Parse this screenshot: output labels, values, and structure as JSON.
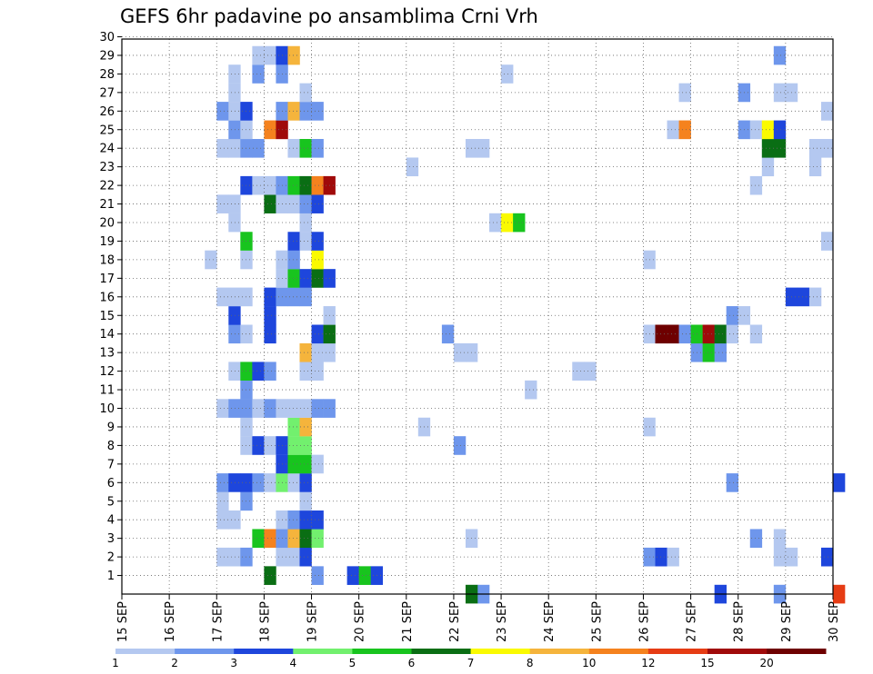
{
  "chart_data": {
    "type": "heatmap",
    "title": "GEFS 6hr padavine po ansamblima Crni Vrh",
    "x_ticks": [
      "15 SEP",
      "16 SEP",
      "17 SEP",
      "18 SEP",
      "19 SEP",
      "20 SEP",
      "21 SEP",
      "22 SEP",
      "23 SEP",
      "24 SEP",
      "25 SEP",
      "26 SEP",
      "27 SEP",
      "28 SEP",
      "29 SEP",
      "30 SEP"
    ],
    "y_ticks": [
      1,
      2,
      3,
      4,
      5,
      6,
      7,
      8,
      9,
      10,
      11,
      12,
      13,
      14,
      15,
      16,
      17,
      18,
      19,
      20,
      21,
      22,
      23,
      24,
      25,
      26,
      27,
      28,
      29,
      30
    ],
    "x_step": "6hr",
    "grid": true,
    "colorbar": {
      "labels": [
        "1",
        "2",
        "3",
        "4",
        "5",
        "6",
        "7",
        "8",
        "10",
        "12",
        "15",
        "20"
      ],
      "colors": [
        "#b4c8f0",
        "#6e96ec",
        "#1e46dc",
        "#72f06e",
        "#18c41e",
        "#0a6e14",
        "#fafa00",
        "#f5b43c",
        "#f5821e",
        "#e63c14",
        "#a00a0a",
        "#6e0000"
      ]
    },
    "cells": [
      {
        "t": 60,
        "m": 0,
        "v": 13
      },
      {
        "t": 55,
        "m": 0,
        "v": 2
      },
      {
        "t": 50,
        "m": 0,
        "v": 3
      },
      {
        "t": 30,
        "m": 0,
        "v": 2
      },
      {
        "t": 29,
        "m": 0,
        "v": 6
      },
      {
        "t": 12,
        "m": 1,
        "v": 6
      },
      {
        "t": 16,
        "m": 1,
        "v": 2
      },
      {
        "t": 19,
        "m": 1,
        "v": 3
      },
      {
        "t": 20,
        "m": 1,
        "v": 5
      },
      {
        "t": 21,
        "m": 1,
        "v": 3
      },
      {
        "t": 8,
        "m": 2,
        "v": 1
      },
      {
        "t": 9,
        "m": 2,
        "v": 1
      },
      {
        "t": 10,
        "m": 2,
        "v": 2
      },
      {
        "t": 13,
        "m": 2,
        "v": 1
      },
      {
        "t": 14,
        "m": 2,
        "v": 1
      },
      {
        "t": 15,
        "m": 2,
        "v": 3
      },
      {
        "t": 44,
        "m": 2,
        "v": 2
      },
      {
        "t": 45,
        "m": 2,
        "v": 3
      },
      {
        "t": 46,
        "m": 2,
        "v": 1
      },
      {
        "t": 55,
        "m": 2,
        "v": 1
      },
      {
        "t": 56,
        "m": 2,
        "v": 1
      },
      {
        "t": 59,
        "m": 2,
        "v": 3
      },
      {
        "t": 11,
        "m": 3,
        "v": 5
      },
      {
        "t": 12,
        "m": 3,
        "v": 10
      },
      {
        "t": 13,
        "m": 3,
        "v": 2
      },
      {
        "t": 14,
        "m": 3,
        "v": 8
      },
      {
        "t": 15,
        "m": 3,
        "v": 6
      },
      {
        "t": 16,
        "m": 3,
        "v": 4
      },
      {
        "t": 29,
        "m": 3,
        "v": 1
      },
      {
        "t": 53,
        "m": 3,
        "v": 2
      },
      {
        "t": 55,
        "m": 3,
        "v": 1
      },
      {
        "t": 8,
        "m": 4,
        "v": 1
      },
      {
        "t": 9,
        "m": 4,
        "v": 1
      },
      {
        "t": 13,
        "m": 4,
        "v": 1
      },
      {
        "t": 14,
        "m": 4,
        "v": 2
      },
      {
        "t": 15,
        "m": 4,
        "v": 3
      },
      {
        "t": 16,
        "m": 4,
        "v": 3
      },
      {
        "t": 8,
        "m": 5,
        "v": 1
      },
      {
        "t": 10,
        "m": 5,
        "v": 2
      },
      {
        "t": 15,
        "m": 5,
        "v": 1
      },
      {
        "t": 8,
        "m": 6,
        "v": 2
      },
      {
        "t": 9,
        "m": 6,
        "v": 3
      },
      {
        "t": 10,
        "m": 6,
        "v": 3
      },
      {
        "t": 11,
        "m": 6,
        "v": 2
      },
      {
        "t": 12,
        "m": 6,
        "v": 1
      },
      {
        "t": 13,
        "m": 6,
        "v": 4
      },
      {
        "t": 14,
        "m": 6,
        "v": 1
      },
      {
        "t": 15,
        "m": 6,
        "v": 3
      },
      {
        "t": 51,
        "m": 6,
        "v": 2
      },
      {
        "t": 60,
        "m": 6,
        "v": 3
      },
      {
        "t": 13,
        "m": 7,
        "v": 3
      },
      {
        "t": 14,
        "m": 7,
        "v": 5
      },
      {
        "t": 15,
        "m": 7,
        "v": 5
      },
      {
        "t": 16,
        "m": 7,
        "v": 1
      },
      {
        "t": 10,
        "m": 8,
        "v": 1
      },
      {
        "t": 11,
        "m": 8,
        "v": 3
      },
      {
        "t": 12,
        "m": 8,
        "v": 1
      },
      {
        "t": 13,
        "m": 8,
        "v": 3
      },
      {
        "t": 14,
        "m": 8,
        "v": 4
      },
      {
        "t": 15,
        "m": 8,
        "v": 4
      },
      {
        "t": 28,
        "m": 8,
        "v": 2
      },
      {
        "t": 10,
        "m": 9,
        "v": 1
      },
      {
        "t": 14,
        "m": 9,
        "v": 4
      },
      {
        "t": 15,
        "m": 9,
        "v": 9
      },
      {
        "t": 25,
        "m": 9,
        "v": 1
      },
      {
        "t": 44,
        "m": 9,
        "v": 1
      },
      {
        "t": 8,
        "m": 10,
        "v": 1
      },
      {
        "t": 9,
        "m": 10,
        "v": 2
      },
      {
        "t": 10,
        "m": 10,
        "v": 2
      },
      {
        "t": 11,
        "m": 10,
        "v": 1
      },
      {
        "t": 12,
        "m": 10,
        "v": 2
      },
      {
        "t": 13,
        "m": 10,
        "v": 1
      },
      {
        "t": 14,
        "m": 10,
        "v": 1
      },
      {
        "t": 15,
        "m": 10,
        "v": 1
      },
      {
        "t": 16,
        "m": 10,
        "v": 2
      },
      {
        "t": 17,
        "m": 10,
        "v": 2
      },
      {
        "t": 10,
        "m": 11,
        "v": 2
      },
      {
        "t": 34,
        "m": 11,
        "v": 1
      },
      {
        "t": 9,
        "m": 12,
        "v": 1
      },
      {
        "t": 10,
        "m": 12,
        "v": 5
      },
      {
        "t": 11,
        "m": 12,
        "v": 3
      },
      {
        "t": 12,
        "m": 12,
        "v": 2
      },
      {
        "t": 15,
        "m": 12,
        "v": 1
      },
      {
        "t": 16,
        "m": 12,
        "v": 1
      },
      {
        "t": 38,
        "m": 12,
        "v": 1
      },
      {
        "t": 39,
        "m": 12,
        "v": 1
      },
      {
        "t": 15,
        "m": 13,
        "v": 8
      },
      {
        "t": 16,
        "m": 13,
        "v": 1
      },
      {
        "t": 17,
        "m": 13,
        "v": 1
      },
      {
        "t": 28,
        "m": 13,
        "v": 1
      },
      {
        "t": 29,
        "m": 13,
        "v": 1
      },
      {
        "t": 48,
        "m": 13,
        "v": 2
      },
      {
        "t": 49,
        "m": 13,
        "v": 5
      },
      {
        "t": 50,
        "m": 13,
        "v": 2
      },
      {
        "t": 9,
        "m": 14,
        "v": 2
      },
      {
        "t": 10,
        "m": 14,
        "v": 1
      },
      {
        "t": 12,
        "m": 14,
        "v": 3
      },
      {
        "t": 16,
        "m": 14,
        "v": 3
      },
      {
        "t": 17,
        "m": 14,
        "v": 6
      },
      {
        "t": 27,
        "m": 14,
        "v": 2
      },
      {
        "t": 44,
        "m": 14,
        "v": 1
      },
      {
        "t": 45,
        "m": 14,
        "v": 20
      },
      {
        "t": 46,
        "m": 14,
        "v": 20
      },
      {
        "t": 47,
        "m": 14,
        "v": 2
      },
      {
        "t": 48,
        "m": 14,
        "v": 5
      },
      {
        "t": 49,
        "m": 14,
        "v": 15
      },
      {
        "t": 50,
        "m": 14,
        "v": 6
      },
      {
        "t": 51,
        "m": 14,
        "v": 1
      },
      {
        "t": 53,
        "m": 14,
        "v": 1
      },
      {
        "t": 9,
        "m": 15,
        "v": 3
      },
      {
        "t": 12,
        "m": 15,
        "v": 3
      },
      {
        "t": 17,
        "m": 15,
        "v": 1
      },
      {
        "t": 51,
        "m": 15,
        "v": 2
      },
      {
        "t": 52,
        "m": 15,
        "v": 1
      },
      {
        "t": 8,
        "m": 16,
        "v": 1
      },
      {
        "t": 9,
        "m": 16,
        "v": 1
      },
      {
        "t": 10,
        "m": 16,
        "v": 1
      },
      {
        "t": 12,
        "m": 16,
        "v": 3
      },
      {
        "t": 13,
        "m": 16,
        "v": 2
      },
      {
        "t": 14,
        "m": 16,
        "v": 2
      },
      {
        "t": 15,
        "m": 16,
        "v": 2
      },
      {
        "t": 56,
        "m": 16,
        "v": 3
      },
      {
        "t": 57,
        "m": 16,
        "v": 3
      },
      {
        "t": 58,
        "m": 16,
        "v": 1
      },
      {
        "t": 13,
        "m": 17,
        "v": 1
      },
      {
        "t": 14,
        "m": 17,
        "v": 5
      },
      {
        "t": 15,
        "m": 17,
        "v": 3
      },
      {
        "t": 16,
        "m": 17,
        "v": 6
      },
      {
        "t": 17,
        "m": 17,
        "v": 3
      },
      {
        "t": 7,
        "m": 18,
        "v": 1
      },
      {
        "t": 10,
        "m": 18,
        "v": 1
      },
      {
        "t": 13,
        "m": 18,
        "v": 1
      },
      {
        "t": 14,
        "m": 18,
        "v": 2
      },
      {
        "t": 16,
        "m": 18,
        "v": 7
      },
      {
        "t": 44,
        "m": 18,
        "v": 1
      },
      {
        "t": 10,
        "m": 19,
        "v": 5
      },
      {
        "t": 14,
        "m": 19,
        "v": 3
      },
      {
        "t": 15,
        "m": 19,
        "v": 1
      },
      {
        "t": 16,
        "m": 19,
        "v": 3
      },
      {
        "t": 59,
        "m": 19,
        "v": 1
      },
      {
        "t": 9,
        "m": 20,
        "v": 1
      },
      {
        "t": 15,
        "m": 20,
        "v": 1
      },
      {
        "t": 31,
        "m": 20,
        "v": 1
      },
      {
        "t": 32,
        "m": 20,
        "v": 7
      },
      {
        "t": 33,
        "m": 20,
        "v": 5
      },
      {
        "t": 8,
        "m": 21,
        "v": 1
      },
      {
        "t": 9,
        "m": 21,
        "v": 1
      },
      {
        "t": 12,
        "m": 21,
        "v": 6
      },
      {
        "t": 13,
        "m": 21,
        "v": 1
      },
      {
        "t": 14,
        "m": 21,
        "v": 1
      },
      {
        "t": 15,
        "m": 21,
        "v": 2
      },
      {
        "t": 16,
        "m": 21,
        "v": 3
      },
      {
        "t": 10,
        "m": 22,
        "v": 3
      },
      {
        "t": 11,
        "m": 22,
        "v": 1
      },
      {
        "t": 12,
        "m": 22,
        "v": 1
      },
      {
        "t": 13,
        "m": 22,
        "v": 2
      },
      {
        "t": 14,
        "m": 22,
        "v": 5
      },
      {
        "t": 15,
        "m": 22,
        "v": 6
      },
      {
        "t": 16,
        "m": 22,
        "v": 10
      },
      {
        "t": 17,
        "m": 22,
        "v": 15
      },
      {
        "t": 53,
        "m": 22,
        "v": 1
      },
      {
        "t": 24,
        "m": 23,
        "v": 1
      },
      {
        "t": 54,
        "m": 23,
        "v": 1
      },
      {
        "t": 58,
        "m": 23,
        "v": 1
      },
      {
        "t": 8,
        "m": 24,
        "v": 1
      },
      {
        "t": 9,
        "m": 24,
        "v": 1
      },
      {
        "t": 10,
        "m": 24,
        "v": 2
      },
      {
        "t": 11,
        "m": 24,
        "v": 2
      },
      {
        "t": 14,
        "m": 24,
        "v": 1
      },
      {
        "t": 15,
        "m": 24,
        "v": 5
      },
      {
        "t": 16,
        "m": 24,
        "v": 2
      },
      {
        "t": 29,
        "m": 24,
        "v": 1
      },
      {
        "t": 30,
        "m": 24,
        "v": 1
      },
      {
        "t": 54,
        "m": 24,
        "v": 6
      },
      {
        "t": 55,
        "m": 24,
        "v": 6
      },
      {
        "t": 58,
        "m": 24,
        "v": 1
      },
      {
        "t": 59,
        "m": 24,
        "v": 1
      },
      {
        "t": 9,
        "m": 25,
        "v": 2
      },
      {
        "t": 10,
        "m": 25,
        "v": 1
      },
      {
        "t": 12,
        "m": 25,
        "v": 10
      },
      {
        "t": 13,
        "m": 25,
        "v": 15
      },
      {
        "t": 46,
        "m": 25,
        "v": 1
      },
      {
        "t": 47,
        "m": 25,
        "v": 10
      },
      {
        "t": 52,
        "m": 25,
        "v": 2
      },
      {
        "t": 53,
        "m": 25,
        "v": 1
      },
      {
        "t": 54,
        "m": 25,
        "v": 7
      },
      {
        "t": 55,
        "m": 25,
        "v": 3
      },
      {
        "t": 8,
        "m": 26,
        "v": 2
      },
      {
        "t": 9,
        "m": 26,
        "v": 1
      },
      {
        "t": 10,
        "m": 26,
        "v": 3
      },
      {
        "t": 13,
        "m": 26,
        "v": 2
      },
      {
        "t": 14,
        "m": 26,
        "v": 8
      },
      {
        "t": 15,
        "m": 26,
        "v": 2
      },
      {
        "t": 16,
        "m": 26,
        "v": 2
      },
      {
        "t": 59,
        "m": 26,
        "v": 1
      },
      {
        "t": 9,
        "m": 27,
        "v": 1
      },
      {
        "t": 15,
        "m": 27,
        "v": 1
      },
      {
        "t": 47,
        "m": 27,
        "v": 1
      },
      {
        "t": 52,
        "m": 27,
        "v": 2
      },
      {
        "t": 55,
        "m": 27,
        "v": 1
      },
      {
        "t": 56,
        "m": 27,
        "v": 1
      },
      {
        "t": 9,
        "m": 28,
        "v": 1
      },
      {
        "t": 11,
        "m": 28,
        "v": 2
      },
      {
        "t": 13,
        "m": 28,
        "v": 2
      },
      {
        "t": 32,
        "m": 28,
        "v": 1
      },
      {
        "t": 11,
        "m": 29,
        "v": 1
      },
      {
        "t": 12,
        "m": 29,
        "v": 1
      },
      {
        "t": 13,
        "m": 29,
        "v": 3
      },
      {
        "t": 14,
        "m": 29,
        "v": 8
      },
      {
        "t": 55,
        "m": 29,
        "v": 2
      }
    ]
  }
}
